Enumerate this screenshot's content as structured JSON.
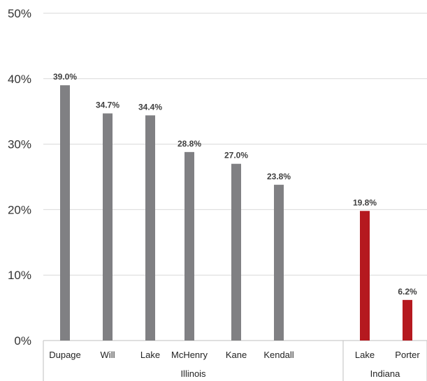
{
  "chart_data": {
    "type": "bar",
    "title": "",
    "xlabel": "",
    "ylabel": "",
    "ylim": [
      0,
      50
    ],
    "yticks": [
      "0%",
      "10%",
      "20%",
      "30%",
      "40%",
      "50%"
    ],
    "grid": true,
    "groups": [
      {
        "name": "Illinois",
        "color": "#808083",
        "categories": [
          "Dupage",
          "Will",
          "Lake",
          "McHenry",
          "Kane",
          "Kendall"
        ],
        "values": [
          39.0,
          34.7,
          34.4,
          28.8,
          27.0,
          23.8
        ],
        "labels": [
          "39.0%",
          "34.7%",
          "34.4%",
          "28.8%",
          "27.0%",
          "23.8%"
        ]
      },
      {
        "name": "Indiana",
        "color": "#b5191f",
        "categories": [
          "Lake",
          "Porter"
        ],
        "values": [
          19.8,
          6.2
        ],
        "labels": [
          "19.8%",
          "6.2%"
        ]
      }
    ]
  }
}
